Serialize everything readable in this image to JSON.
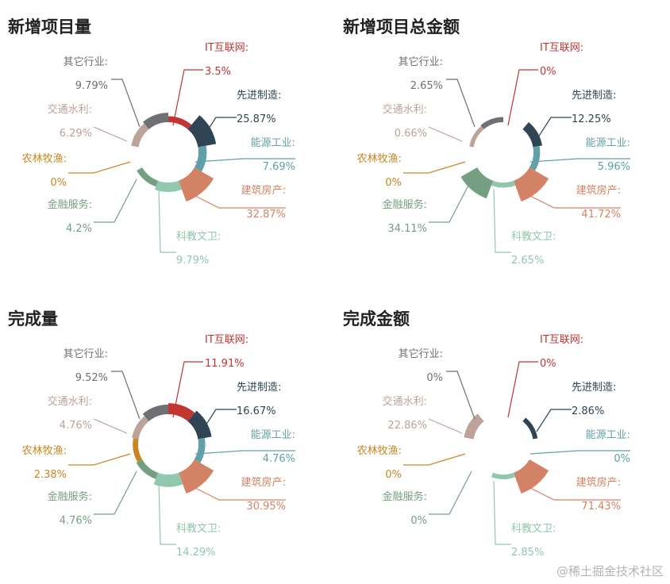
{
  "chart_data": [
    {
      "type": "pie",
      "title": "新增项目量",
      "colors": [
        "#c23531",
        "#2f4554",
        "#61a0a8",
        "#d48265",
        "#91c7ae",
        "#749f83",
        "#ca8622",
        "#bda29a",
        "#6e7074"
      ],
      "slices": [
        {
          "label": "IT互联网:",
          "value": "3.5%"
        },
        {
          "label": "先进制造:",
          "value": "25.87%"
        },
        {
          "label": "能源工业:",
          "value": "7.69%"
        },
        {
          "label": "建筑房产:",
          "value": "32.87%"
        },
        {
          "label": "科教文卫:",
          "value": "9.79%"
        },
        {
          "label": "金融服务:",
          "value": "4.2%"
        },
        {
          "label": "农林牧渔:",
          "value": "0%"
        },
        {
          "label": "交通水利:",
          "value": "6.29%"
        },
        {
          "label": "其它行业:",
          "value": "9.79%"
        }
      ]
    },
    {
      "type": "pie",
      "title": "新增项目总金额",
      "colors": [
        "#c23531",
        "#2f4554",
        "#61a0a8",
        "#d48265",
        "#91c7ae",
        "#749f83",
        "#ca8622",
        "#bda29a",
        "#6e7074"
      ],
      "slices": [
        {
          "label": "IT互联网:",
          "value": "0%"
        },
        {
          "label": "先进制造:",
          "value": "12.25%"
        },
        {
          "label": "能源工业:",
          "value": "5.96%"
        },
        {
          "label": "建筑房产:",
          "value": "41.72%"
        },
        {
          "label": "科教文卫:",
          "value": "2.65%"
        },
        {
          "label": "金融服务:",
          "value": "34.11%"
        },
        {
          "label": "农林牧渔:",
          "value": "0%"
        },
        {
          "label": "交通水利:",
          "value": "0.66%"
        },
        {
          "label": "其它行业:",
          "value": "2.65%"
        }
      ]
    },
    {
      "type": "pie",
      "title": "完成量",
      "colors": [
        "#c23531",
        "#2f4554",
        "#61a0a8",
        "#d48265",
        "#91c7ae",
        "#749f83",
        "#ca8622",
        "#bda29a",
        "#6e7074"
      ],
      "slices": [
        {
          "label": "IT互联网:",
          "value": "11.91%"
        },
        {
          "label": "先进制造:",
          "value": "16.67%"
        },
        {
          "label": "能源工业:",
          "value": "4.76%"
        },
        {
          "label": "建筑房产:",
          "value": "30.95%"
        },
        {
          "label": "科教文卫:",
          "value": "14.29%"
        },
        {
          "label": "金融服务:",
          "value": "4.76%"
        },
        {
          "label": "农林牧渔:",
          "value": "2.38%"
        },
        {
          "label": "交通水利:",
          "value": "4.76%"
        },
        {
          "label": "其它行业:",
          "value": "9.52%"
        }
      ]
    },
    {
      "type": "pie",
      "title": "完成金额",
      "colors": [
        "#c23531",
        "#2f4554",
        "#61a0a8",
        "#d48265",
        "#91c7ae",
        "#749f83",
        "#ca8622",
        "#bda29a",
        "#6e7074"
      ],
      "slices": [
        {
          "label": "IT互联网:",
          "value": "0%"
        },
        {
          "label": "先进制造:",
          "value": "2.86%"
        },
        {
          "label": "能源工业:",
          "value": "0%"
        },
        {
          "label": "建筑房产:",
          "value": "71.43%"
        },
        {
          "label": "科教文卫:",
          "value": "2.85%"
        },
        {
          "label": "金融服务:",
          "value": "0%"
        },
        {
          "label": "农林牧渔:",
          "value": "0%"
        },
        {
          "label": "交通水利:",
          "value": "22.86%"
        },
        {
          "label": "其它行业:",
          "value": "0%"
        }
      ]
    }
  ],
  "watermark": "@稀土掘金技术社区"
}
